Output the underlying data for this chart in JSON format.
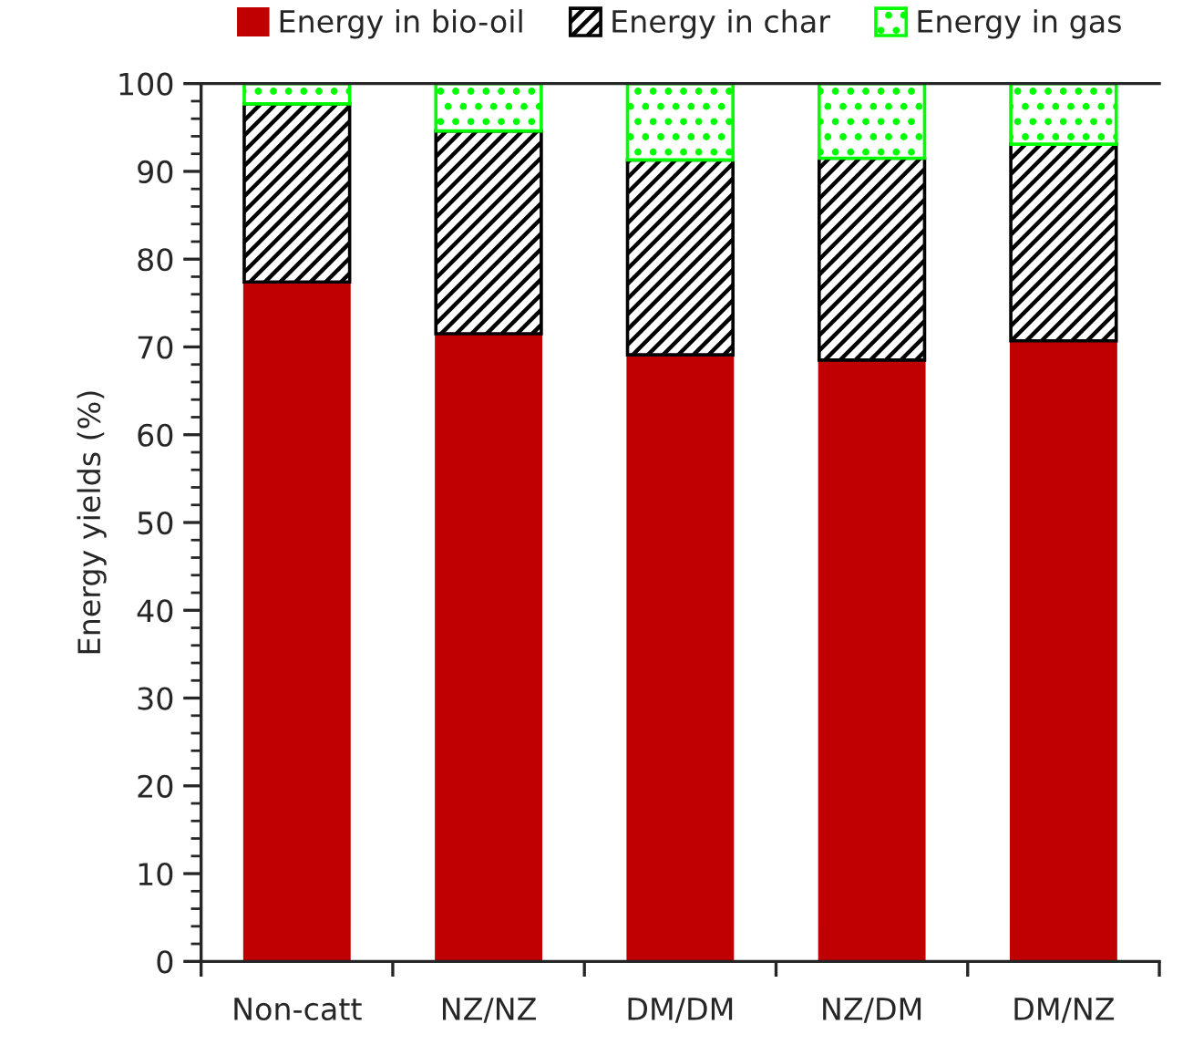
{
  "chart_data": {
    "type": "bar",
    "stacked": true,
    "ylabel": "Energy yields (%)",
    "categories": [
      "Non-catt",
      "NZ/NZ",
      "DM/DM",
      "NZ/DM",
      "DM/NZ"
    ],
    "series": [
      {
        "name": "Energy in bio-oil",
        "color": "#c00000",
        "values": [
          77.4,
          71.5,
          69.1,
          68.5,
          70.7
        ]
      },
      {
        "name": "Energy in char",
        "color": "#000000",
        "values": [
          20.3,
          23.1,
          22.2,
          23.0,
          22.4
        ]
      },
      {
        "name": "Energy in gas",
        "color": "#00ff00",
        "values": [
          2.3,
          5.4,
          8.7,
          8.5,
          6.9
        ]
      }
    ],
    "ylim": [
      0,
      100
    ],
    "yticks": [
      0,
      10,
      20,
      30,
      40,
      50,
      60,
      70,
      80,
      90,
      100
    ],
    "grid": false,
    "legend": "top"
  }
}
